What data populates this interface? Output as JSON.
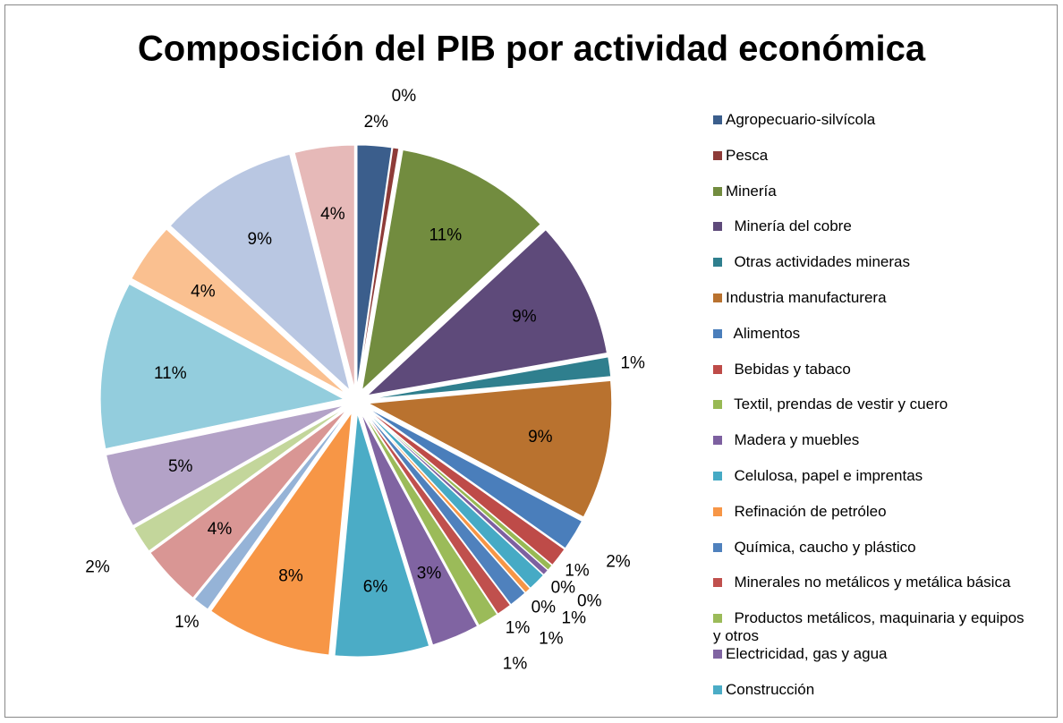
{
  "chart_data": {
    "type": "pie",
    "title": "Composición del PIB por actividad económica",
    "categories": [
      "Agropecuario-silvícola",
      "Pesca",
      "Minería",
      "  Minería del cobre",
      "  Otras actividades mineras",
      "Industria manufacturera",
      "  Alimentos",
      "  Bebidas y tabaco",
      "  Textil, prendas de vestir y cuero",
      "  Madera y muebles",
      "  Celulosa, papel e imprentas",
      "  Refinación de petróleo",
      "  Química, caucho y plástico",
      "  Minerales no metálicos y metálica básica",
      "  Productos metálicos, maquinaria y equipos y otros",
      "Electricidad, gas y agua",
      "Construcción",
      null,
      null,
      null,
      null,
      null,
      null,
      null,
      null,
      null
    ],
    "values": [
      2.3,
      0.4,
      10.5,
      9.2,
      1.3,
      9.3,
      2.1,
      1.3,
      0.4,
      0.4,
      1.2,
      0.4,
      1.2,
      1.0,
      1.4,
      3.2,
      6.3,
      8.4,
      1.1,
      4.1,
      1.8,
      5.0,
      11.2,
      4.0,
      9.3,
      4.0
    ],
    "value_labels": [
      "2%",
      "0%",
      "11%",
      "9%",
      "1%",
      "9%",
      "2%",
      "1%",
      "0%",
      "0%",
      "1%",
      "0%",
      "1%",
      "1%",
      "1%",
      "3%",
      "6%",
      "8%",
      "1%",
      "4%",
      "2%",
      "5%",
      "11%",
      "4%",
      "9%",
      "4%"
    ],
    "colors": [
      "#3B5E8C",
      "#8E3B38",
      "#728C3F",
      "#5E4A7A",
      "#2F7F8E",
      "#B9722F",
      "#4A7EBB",
      "#BE4B48",
      "#98B954",
      "#7D60A0",
      "#46AAC5",
      "#F79646",
      "#4F81BD",
      "#C0504D",
      "#9BBB59",
      "#8064A2",
      "#4BACC6",
      "#F79646",
      "#95B3D7",
      "#D99694",
      "#C3D69B",
      "#B3A2C7",
      "#93CDDD",
      "#FAC090",
      "#B9C7E2",
      "#E6B9B8"
    ],
    "legend": "right"
  }
}
